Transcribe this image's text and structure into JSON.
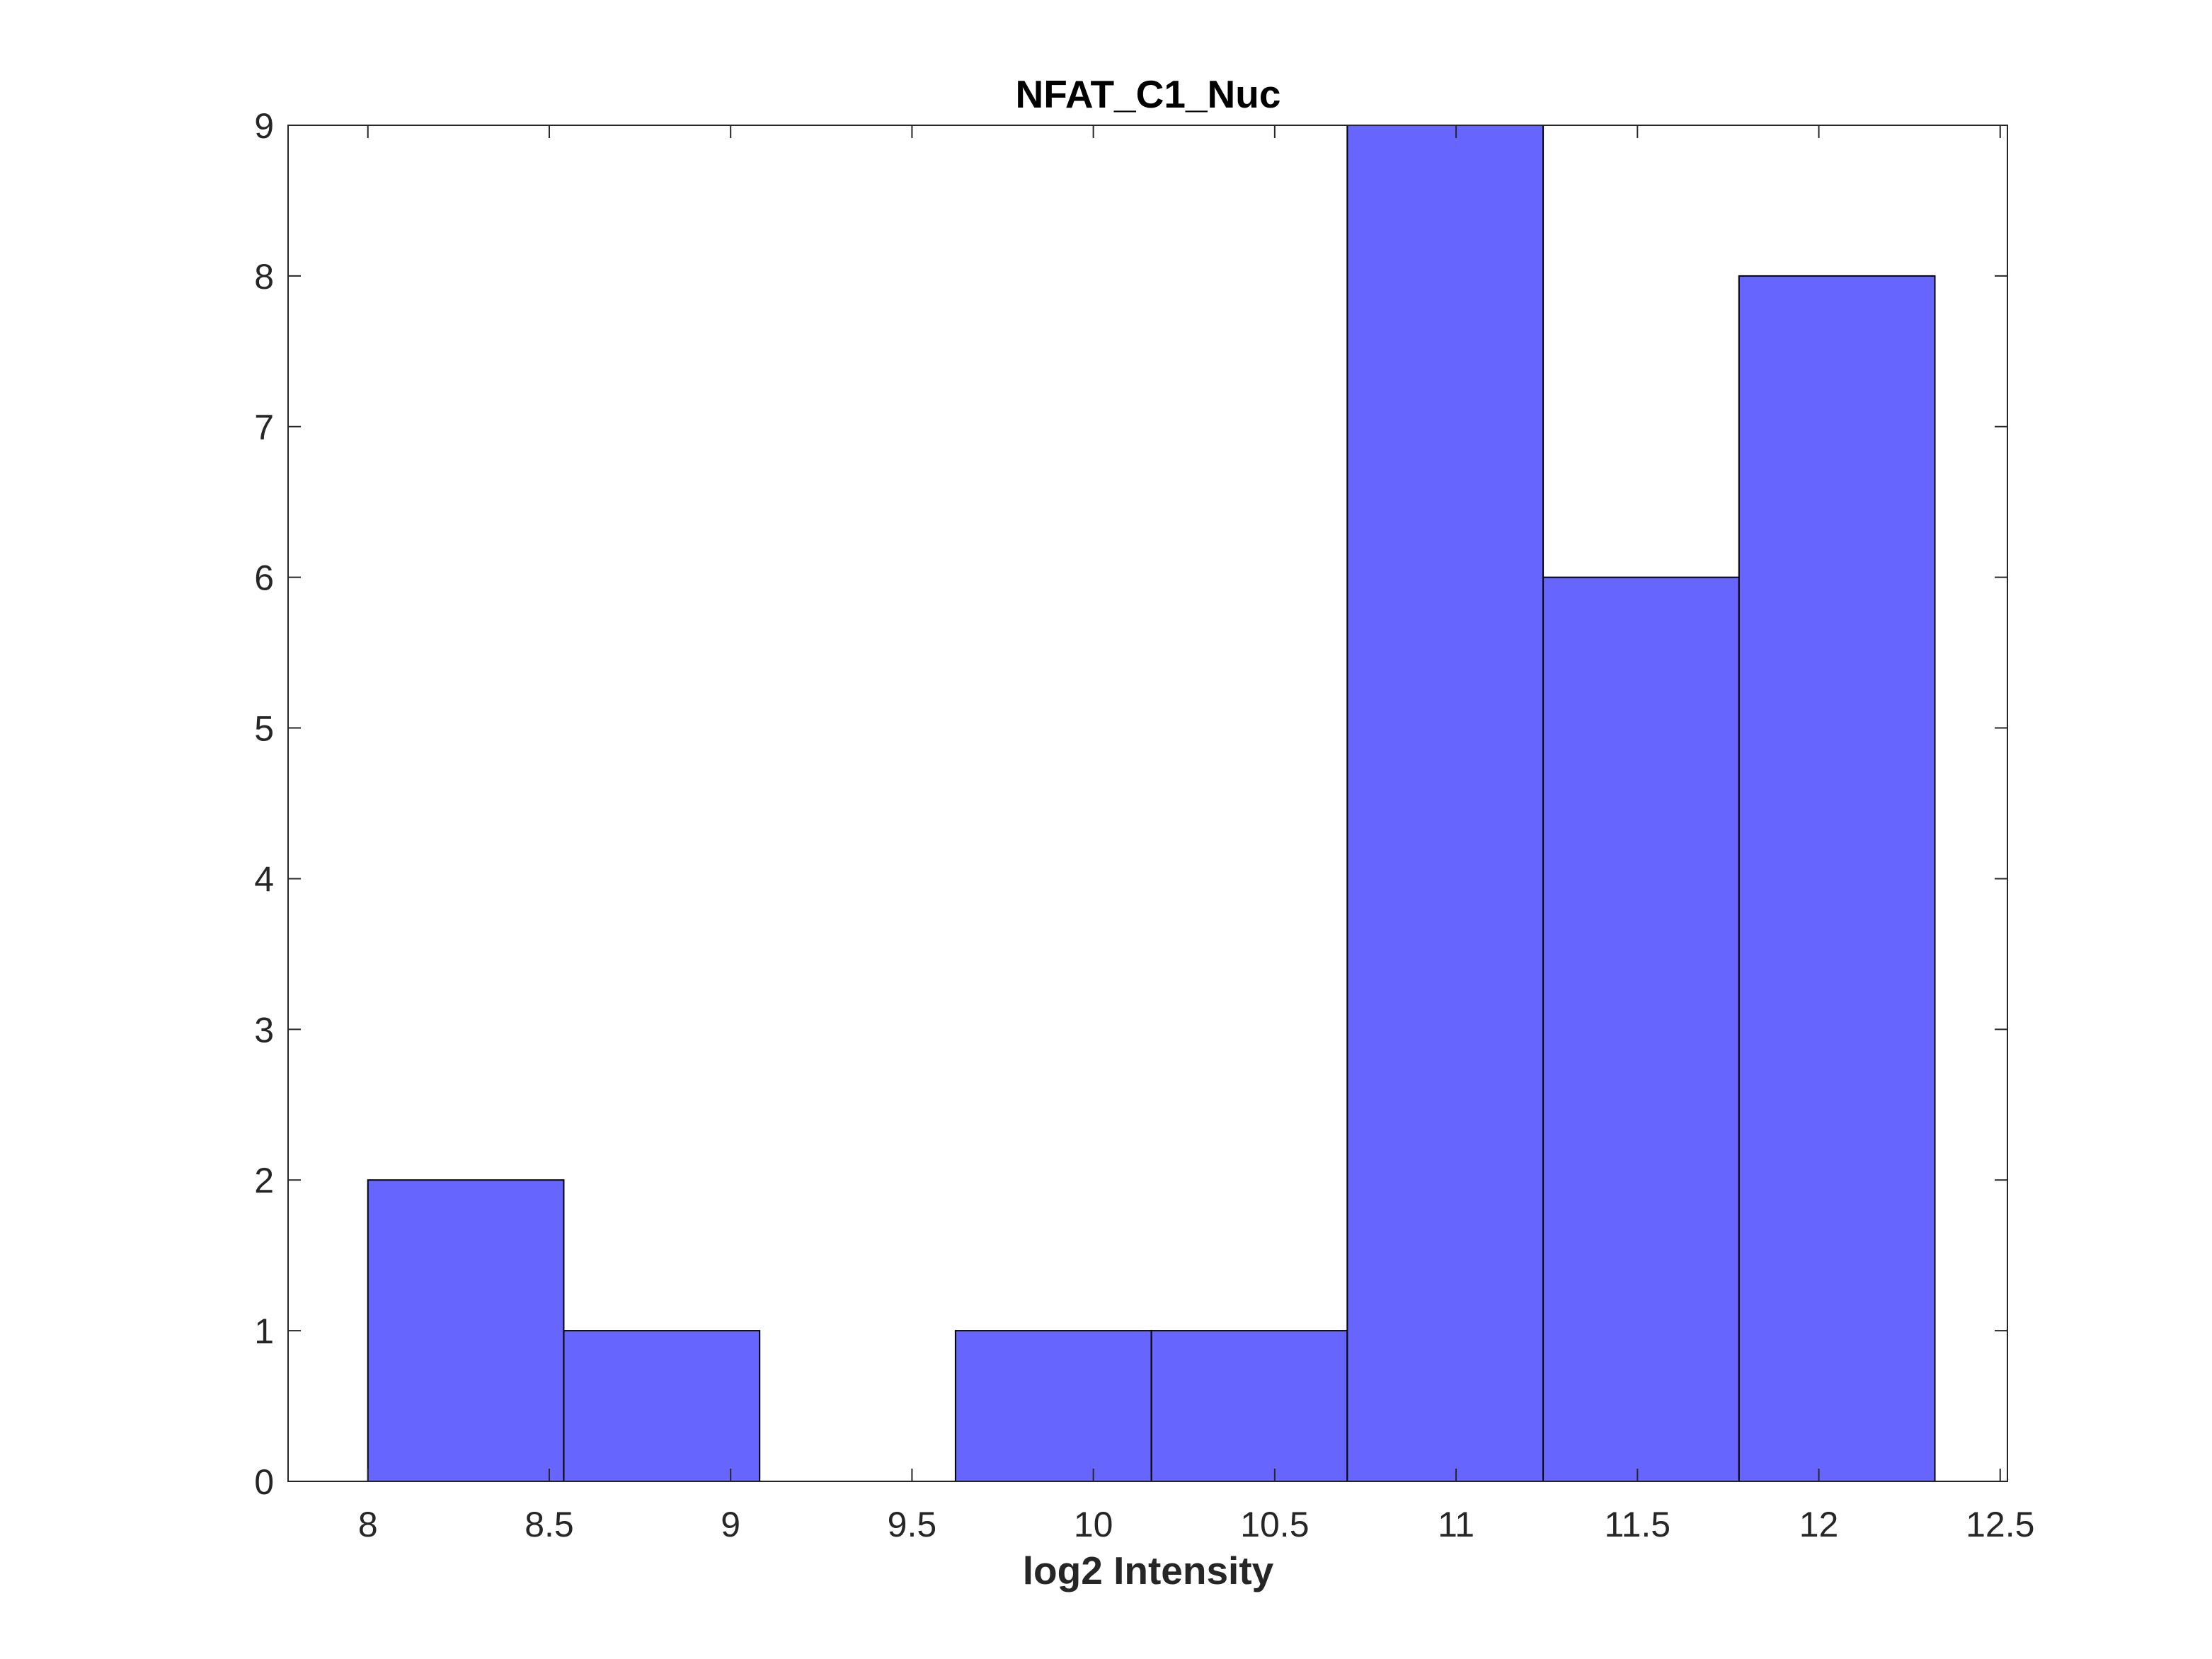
{
  "chart_data": {
    "type": "bar",
    "title": "NFAT_C1_Nuc",
    "xlabel": "log2 Intensity",
    "ylabel": "",
    "xlim": [
      7.78,
      12.52
    ],
    "ylim": [
      0,
      9
    ],
    "bin_edges": [
      8.0,
      8.54,
      9.08,
      9.62,
      10.16,
      10.7,
      11.24,
      11.78,
      12.32
    ],
    "values": [
      2,
      1,
      0,
      1,
      1,
      9,
      6,
      8
    ],
    "xticks": [
      8,
      8.5,
      9,
      9.5,
      10,
      10.5,
      11,
      11.5,
      12,
      12.5
    ],
    "xtick_labels": [
      "8",
      "8.5",
      "9",
      "9.5",
      "10",
      "10.5",
      "11",
      "11.5",
      "12",
      "12.5"
    ],
    "yticks": [
      0,
      1,
      2,
      3,
      4,
      5,
      6,
      7,
      8,
      9
    ],
    "ytick_labels": [
      "0",
      "1",
      "2",
      "3",
      "4",
      "5",
      "6",
      "7",
      "8",
      "9"
    ],
    "bar_color": "#6666ff",
    "edge_color": "#000000",
    "grid": false,
    "legend": null
  }
}
